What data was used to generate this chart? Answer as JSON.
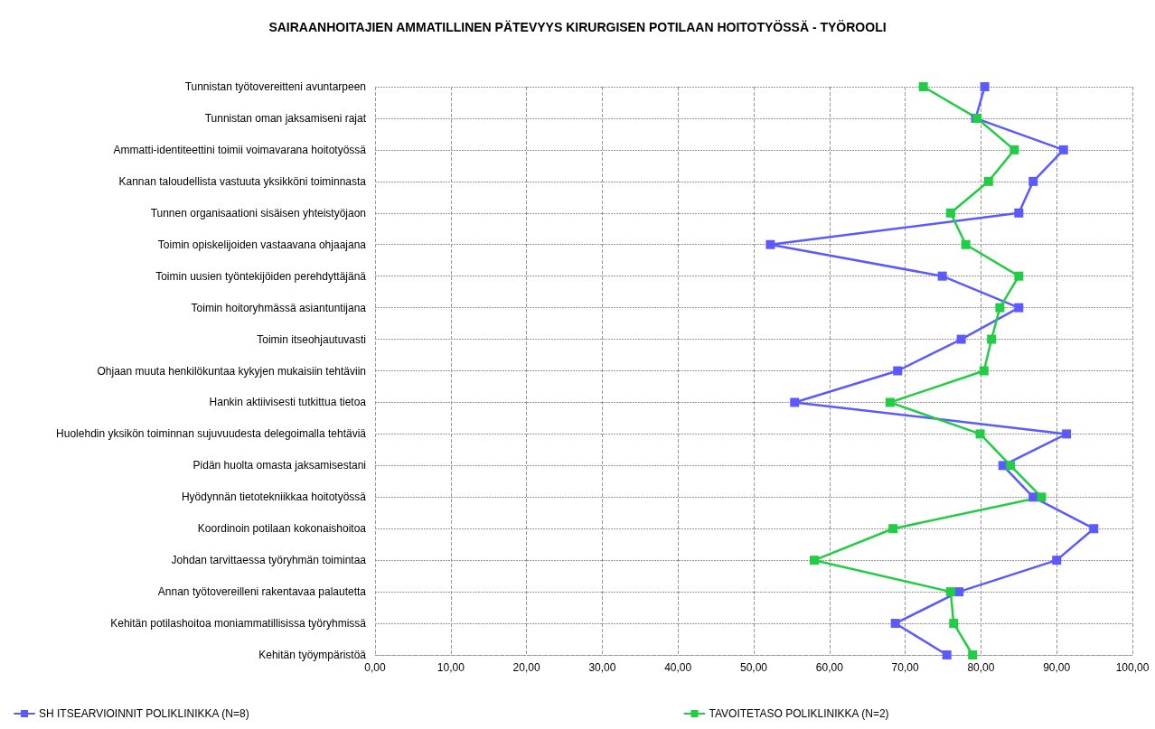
{
  "chart_data": {
    "type": "line",
    "title": "SAIRAANHOITAJIEN AMMATILLINEN PÄTEVYYS KIRURGISEN POTILAAN HOITOTYÖSSÄ - TYÖROOLI",
    "orientation": "horizontal",
    "categories": [
      "Tunnistan työtovereitteni avuntarpeen",
      "Tunnistan oman jaksamiseni rajat",
      "Ammatti-identiteettini toimii voimavarana hoitotyössä",
      "Kannan taloudellista vastuuta yksikköni toiminnasta",
      "Tunnen organisaationi sisäisen yhteistyöjaon",
      "Toimin opiskelijoiden vastaavana ohjaajana",
      "Toimin uusien työntekijöiden perehdyttäjänä",
      "Toimin hoitoryhmässä asiantuntijana",
      "Toimin itseohjautuvasti",
      "Ohjaan muuta henkilökuntaa kykyjen mukaisiin tehtäviin",
      "Hankin aktiivisesti tutkittua tietoa",
      "Huolehdin yksikön toiminnan sujuvuudesta delegoimalla tehtäviä",
      "Pidän huolta omasta jaksamisestani",
      "Hyödynnän tietotekniikkaa hoitotyössä",
      "Koordinoin potilaan kokonaishoitoa",
      "Johdan tarvittaessa työryhmän toimintaa",
      "Annan työtovereilleni rakentavaa palautetta",
      "Kehitän potilashoitoa moniammatillisissa työryhmissä",
      "Kehitän työympäristöä"
    ],
    "series": [
      {
        "name": "SH ITSEARVIOINNIT POLIKLINIKKA (N=8)",
        "color": "#5a5aff",
        "values": [
          80.5,
          79.3,
          90.9,
          86.9,
          85.0,
          52.2,
          74.9,
          85.0,
          77.4,
          69.0,
          55.4,
          91.3,
          82.9,
          86.9,
          94.9,
          90.0,
          77.1,
          68.7,
          75.5
        ]
      },
      {
        "name": "TAVOITETASO POLIKLINIKKA (N=2)",
        "color": "#22cc44",
        "values": [
          72.4,
          79.5,
          84.4,
          81.0,
          76.0,
          78.0,
          85.0,
          82.5,
          81.4,
          80.4,
          68.0,
          79.9,
          83.9,
          88.0,
          68.4,
          58.0,
          76.0,
          76.4,
          78.9
        ]
      }
    ],
    "xlim": [
      0,
      100
    ],
    "xticks": [
      {
        "value": 0,
        "label": "0,00"
      },
      {
        "value": 10,
        "label": "10,00"
      },
      {
        "value": 20,
        "label": "20,00"
      },
      {
        "value": 30,
        "label": "30,00"
      },
      {
        "value": 40,
        "label": "40,00"
      },
      {
        "value": 50,
        "label": "50,00"
      },
      {
        "value": 60,
        "label": "60,00"
      },
      {
        "value": 70,
        "label": "70,00"
      },
      {
        "value": 80,
        "label": "80,00"
      },
      {
        "value": 90,
        "label": "90,00"
      },
      {
        "value": 100,
        "label": "100,00"
      }
    ],
    "grid": true,
    "legend": "bottom",
    "marker": "square",
    "line_style": "solid"
  }
}
